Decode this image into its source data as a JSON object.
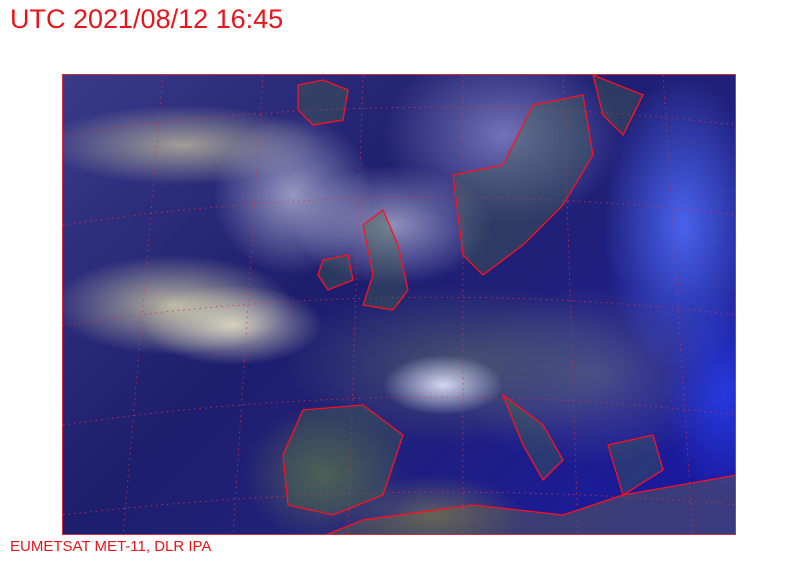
{
  "header": {
    "title": "UTC 2021/08/12 16:45"
  },
  "footer": {
    "credit": "EUMETSAT MET-11, DLR IPA"
  },
  "map": {
    "type": "satellite-image",
    "overlay_color": "#e8141a",
    "grid": "dotted lat/lon"
  }
}
